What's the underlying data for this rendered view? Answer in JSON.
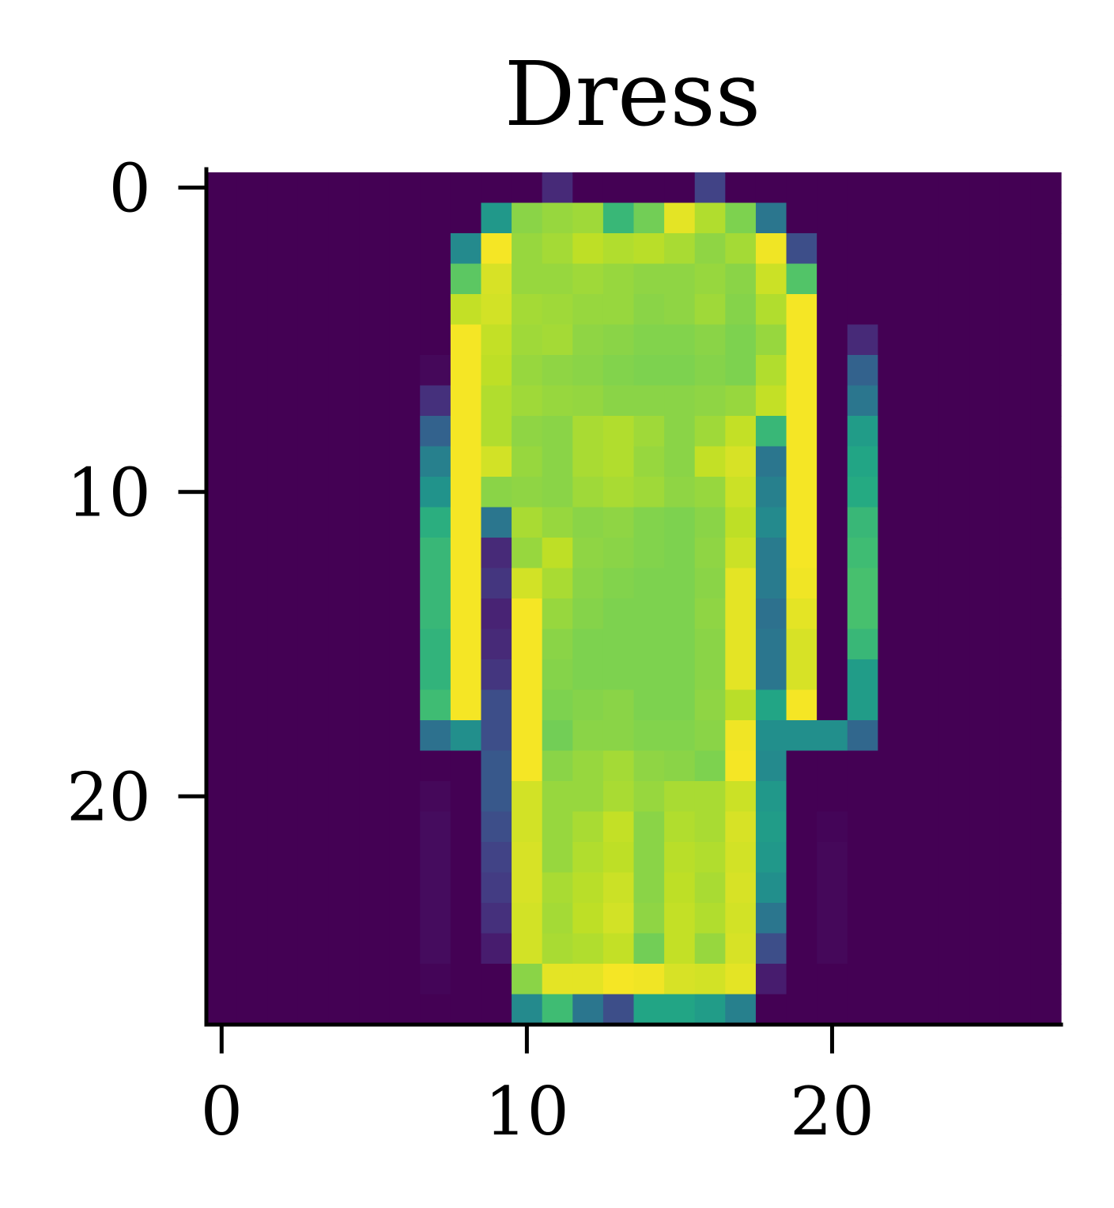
{
  "chart_data": {
    "type": "heatmap",
    "title": "Dress",
    "xlabel": "",
    "ylabel": "",
    "colormap": "viridis",
    "value_range": [
      0,
      255
    ],
    "xlim": [
      -0.5,
      27.5
    ],
    "ylim": [
      27.5,
      -0.5
    ],
    "xticks": [
      0,
      10,
      20
    ],
    "yticks": [
      0,
      10,
      20
    ],
    "grid": false,
    "spines": [
      "left",
      "bottom"
    ],
    "matrix": [
      [
        0,
        0,
        0,
        0,
        0,
        0,
        0,
        0,
        0,
        0,
        0,
        30,
        0,
        0,
        0,
        0,
        50,
        0,
        0,
        0,
        0,
        0,
        0,
        0,
        0,
        0,
        0,
        0
      ],
      [
        0,
        0,
        0,
        0,
        0,
        0,
        0,
        0,
        0,
        135,
        210,
        215,
        218,
        170,
        200,
        245,
        225,
        205,
        100,
        0,
        0,
        0,
        0,
        0,
        0,
        0,
        0,
        0
      ],
      [
        0,
        0,
        0,
        0,
        0,
        0,
        0,
        0,
        120,
        252,
        215,
        220,
        230,
        225,
        228,
        222,
        212,
        220,
        250,
        60,
        0,
        0,
        0,
        0,
        0,
        0,
        0,
        0
      ],
      [
        0,
        0,
        0,
        0,
        0,
        0,
        0,
        0,
        190,
        240,
        215,
        215,
        218,
        215,
        212,
        212,
        215,
        210,
        235,
        185,
        0,
        0,
        0,
        0,
        0,
        0,
        0,
        0
      ],
      [
        0,
        0,
        0,
        0,
        0,
        0,
        0,
        0,
        232,
        238,
        220,
        218,
        215,
        215,
        210,
        212,
        218,
        208,
        225,
        252,
        0,
        0,
        0,
        0,
        0,
        0,
        0,
        0
      ],
      [
        0,
        0,
        0,
        0,
        0,
        0,
        0,
        0,
        252,
        232,
        218,
        220,
        212,
        210,
        207,
        207,
        210,
        205,
        215,
        252,
        0,
        30,
        0,
        0,
        0,
        0,
        0,
        0
      ],
      [
        0,
        0,
        0,
        0,
        0,
        0,
        0,
        5,
        252,
        230,
        215,
        212,
        210,
        207,
        205,
        205,
        208,
        205,
        225,
        252,
        0,
        80,
        0,
        0,
        0,
        0,
        0,
        0
      ],
      [
        0,
        0,
        0,
        0,
        0,
        0,
        0,
        35,
        252,
        225,
        218,
        215,
        214,
        210,
        210,
        210,
        212,
        215,
        232,
        252,
        0,
        100,
        0,
        0,
        0,
        0,
        0,
        0
      ],
      [
        0,
        0,
        0,
        0,
        0,
        0,
        0,
        80,
        252,
        225,
        212,
        210,
        222,
        225,
        218,
        210,
        218,
        232,
        170,
        252,
        0,
        140,
        0,
        0,
        0,
        0,
        0,
        0
      ],
      [
        0,
        0,
        0,
        0,
        0,
        0,
        0,
        110,
        252,
        238,
        215,
        210,
        222,
        225,
        215,
        210,
        232,
        240,
        100,
        252,
        0,
        150,
        0,
        0,
        0,
        0,
        0,
        0
      ],
      [
        0,
        0,
        0,
        0,
        0,
        0,
        0,
        130,
        252,
        210,
        212,
        210,
        218,
        222,
        218,
        212,
        215,
        235,
        110,
        252,
        0,
        155,
        0,
        0,
        0,
        0,
        0,
        0
      ],
      [
        0,
        0,
        0,
        0,
        0,
        0,
        0,
        160,
        252,
        100,
        222,
        215,
        210,
        212,
        207,
        205,
        210,
        230,
        120,
        252,
        0,
        170,
        0,
        0,
        0,
        0,
        0,
        0
      ],
      [
        0,
        0,
        0,
        0,
        0,
        0,
        0,
        170,
        252,
        30,
        215,
        230,
        212,
        210,
        207,
        205,
        212,
        235,
        105,
        252,
        0,
        175,
        0,
        0,
        0,
        0,
        0,
        0
      ],
      [
        0,
        0,
        0,
        0,
        0,
        0,
        0,
        170,
        252,
        40,
        238,
        222,
        210,
        207,
        205,
        205,
        210,
        245,
        105,
        250,
        0,
        180,
        0,
        0,
        0,
        0,
        0,
        0
      ],
      [
        0,
        0,
        0,
        0,
        0,
        0,
        0,
        170,
        252,
        25,
        252,
        215,
        208,
        205,
        205,
        205,
        212,
        245,
        95,
        245,
        0,
        180,
        0,
        0,
        0,
        0,
        0,
        0
      ],
      [
        0,
        0,
        0,
        0,
        0,
        0,
        0,
        165,
        252,
        30,
        252,
        210,
        205,
        205,
        205,
        205,
        210,
        245,
        100,
        240,
        0,
        170,
        0,
        0,
        0,
        0,
        0,
        0
      ],
      [
        0,
        0,
        0,
        0,
        0,
        0,
        0,
        165,
        252,
        40,
        252,
        208,
        205,
        205,
        205,
        205,
        210,
        245,
        100,
        240,
        0,
        140,
        0,
        0,
        0,
        0,
        0,
        0
      ],
      [
        0,
        0,
        0,
        0,
        0,
        0,
        0,
        175,
        252,
        60,
        252,
        205,
        208,
        210,
        205,
        205,
        212,
        228,
        150,
        252,
        0,
        140,
        0,
        0,
        0,
        0,
        0,
        0
      ],
      [
        0,
        0,
        0,
        0,
        0,
        0,
        0,
        95,
        125,
        60,
        252,
        200,
        210,
        210,
        207,
        207,
        210,
        250,
        125,
        125,
        125,
        85,
        0,
        0,
        0,
        0,
        0,
        0
      ],
      [
        0,
        0,
        0,
        0,
        0,
        0,
        0,
        0,
        0,
        70,
        252,
        210,
        215,
        220,
        212,
        210,
        205,
        252,
        120,
        0,
        0,
        0,
        0,
        0,
        0,
        0,
        0,
        0
      ],
      [
        0,
        0,
        0,
        0,
        0,
        0,
        0,
        5,
        0,
        70,
        238,
        215,
        215,
        222,
        215,
        222,
        222,
        235,
        135,
        0,
        0,
        0,
        0,
        0,
        0,
        0,
        0,
        0
      ],
      [
        0,
        0,
        0,
        0,
        0,
        0,
        0,
        8,
        0,
        60,
        238,
        215,
        222,
        232,
        210,
        225,
        222,
        240,
        140,
        0,
        3,
        0,
        0,
        0,
        0,
        0,
        0,
        0
      ],
      [
        0,
        0,
        0,
        0,
        0,
        0,
        0,
        8,
        0,
        50,
        240,
        215,
        225,
        230,
        210,
        228,
        225,
        238,
        135,
        0,
        5,
        0,
        0,
        0,
        0,
        0,
        0,
        0
      ],
      [
        0,
        0,
        0,
        0,
        0,
        0,
        0,
        8,
        0,
        45,
        240,
        222,
        228,
        235,
        210,
        230,
        222,
        240,
        125,
        0,
        5,
        0,
        0,
        0,
        0,
        0,
        0,
        0
      ],
      [
        0,
        0,
        0,
        0,
        0,
        0,
        0,
        8,
        0,
        35,
        238,
        220,
        230,
        238,
        212,
        232,
        225,
        238,
        100,
        0,
        5,
        0,
        0,
        0,
        0,
        0,
        0,
        0
      ],
      [
        0,
        0,
        0,
        0,
        0,
        0,
        0,
        8,
        0,
        20,
        238,
        222,
        225,
        232,
        200,
        232,
        215,
        240,
        60,
        0,
        5,
        0,
        0,
        0,
        0,
        0,
        0,
        0
      ],
      [
        0,
        0,
        0,
        0,
        0,
        0,
        0,
        3,
        0,
        0,
        210,
        245,
        245,
        252,
        250,
        240,
        238,
        245,
        20,
        0,
        0,
        0,
        0,
        0,
        0,
        0,
        0,
        0
      ],
      [
        0,
        0,
        0,
        0,
        0,
        0,
        0,
        0,
        0,
        0,
        120,
        175,
        100,
        60,
        150,
        150,
        140,
        110,
        0,
        0,
        0,
        0,
        0,
        0,
        0,
        0,
        0,
        0
      ]
    ]
  }
}
